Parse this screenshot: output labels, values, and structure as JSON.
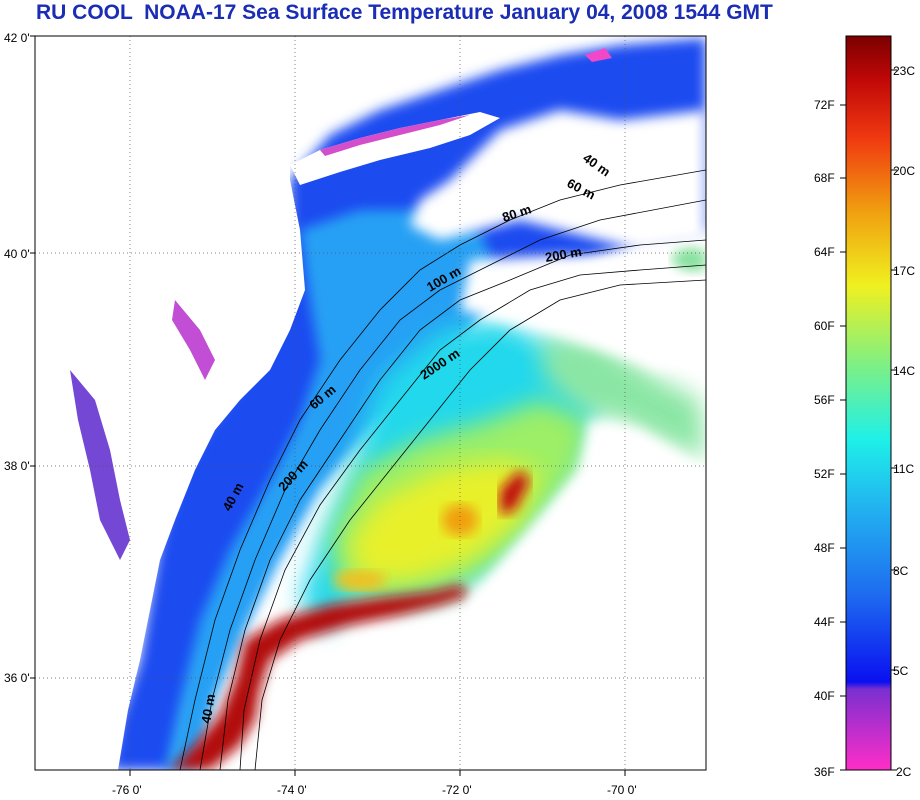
{
  "title": "RU COOL  NOAA-17 Sea Surface Temperature January 04, 2008 1544 GMT",
  "map": {
    "lat_ticks": [
      "42 0'",
      "40 0'",
      "38 0'",
      "36 0'"
    ],
    "lon_ticks": [
      "-76 0'",
      "-74 0'",
      "-72 0'",
      "-70 0'"
    ],
    "contour_labels": [
      "40 m",
      "60 m",
      "80 m",
      "100 m",
      "200 m",
      "2000 m",
      "60 m",
      "200 m",
      "40 m",
      "40 m"
    ]
  },
  "colorbar": {
    "fahrenheit": [
      "72F",
      "68F",
      "64F",
      "60F",
      "56F",
      "52F",
      "48F",
      "44F",
      "40F",
      "36F"
    ],
    "celsius": [
      "23C",
      "20C",
      "17C",
      "14C",
      "11C",
      "8C",
      "5C",
      "2C"
    ],
    "colors": [
      "#ff2ec8",
      "#7a2fd0",
      "#0a10f0",
      "#1e6cf0",
      "#22b4f0",
      "#1ef0e8",
      "#86f07c",
      "#f0f020",
      "#f0a010",
      "#f03a10",
      "#c00808",
      "#7c0000"
    ]
  }
}
